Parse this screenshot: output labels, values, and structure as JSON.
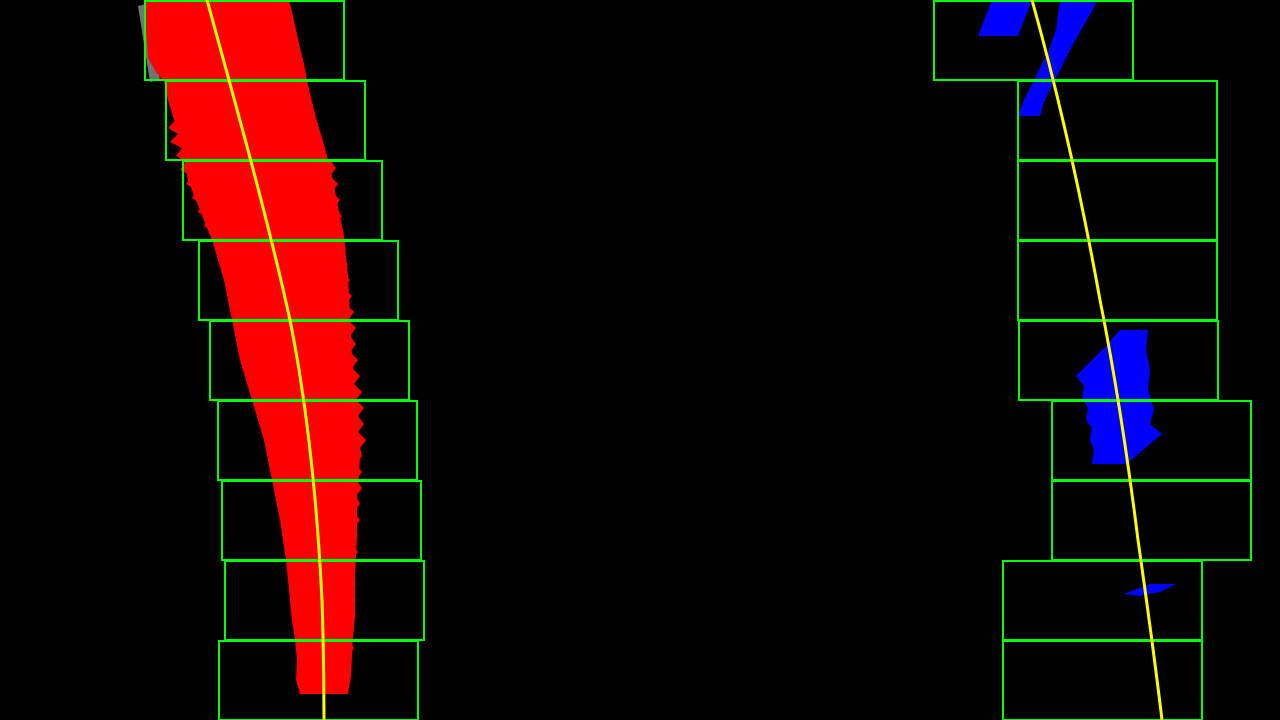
{
  "colors": {
    "background": "#000000",
    "left_lane_pixels": "#ff0000",
    "right_lane_pixels": "#0000ff",
    "search_windows": "#00ff00",
    "fitted_curve": "#ffff00",
    "residual_edge": "#bfbfbf"
  },
  "layers": [
    "left-lane-pixels",
    "right-lane-pixels",
    "left-search-windows",
    "right-search-windows",
    "left-lane-fit-curve",
    "right-lane-fit-curve"
  ]
}
